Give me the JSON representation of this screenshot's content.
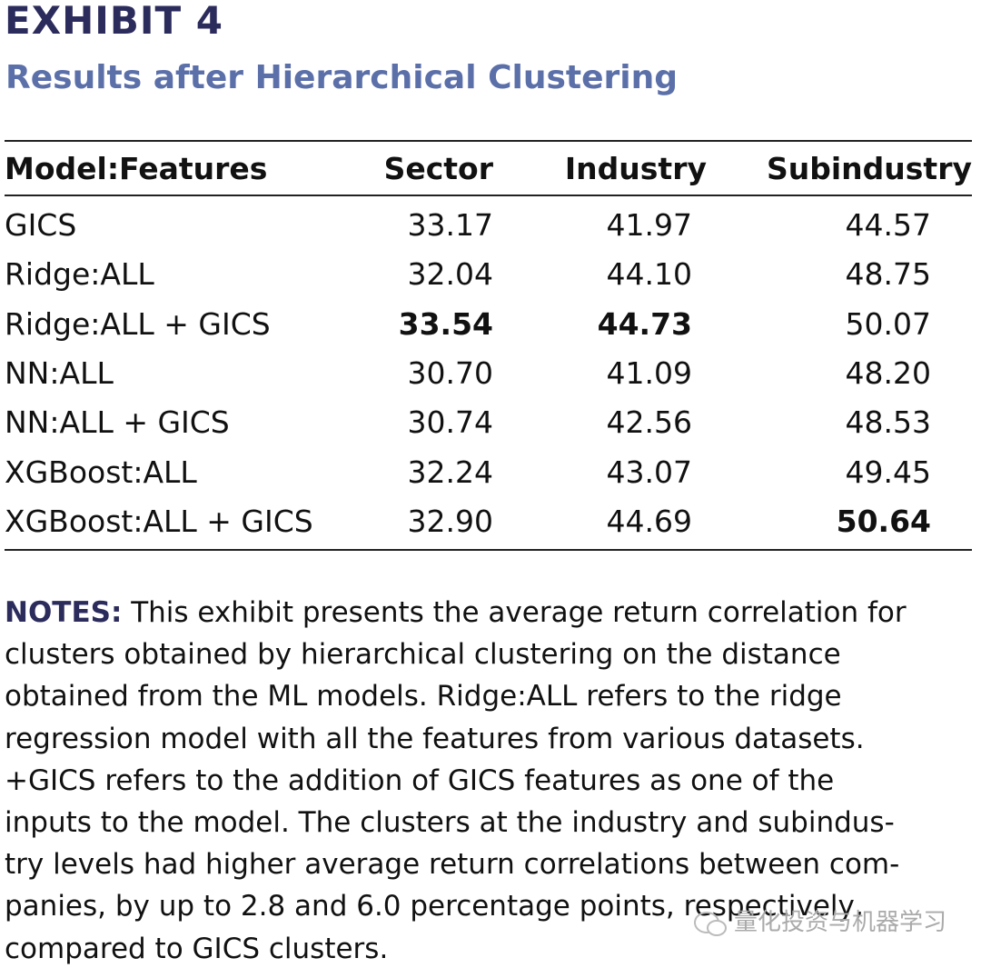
{
  "header": {
    "exhibit": "EXHIBIT 4",
    "title": "Results after Hierarchical Clustering"
  },
  "table": {
    "columns": [
      "Model:Features",
      "Sector",
      "Industry",
      "Subindustry"
    ],
    "rows": [
      [
        "GICS",
        "33.17",
        "41.97",
        "44.57"
      ],
      [
        "Ridge:ALL",
        "32.04",
        "44.10",
        "48.75"
      ],
      [
        "Ridge:ALL + GICS",
        "33.54",
        "44.73",
        "50.07"
      ],
      [
        "NN:ALL",
        "30.70",
        "41.09",
        "48.20"
      ],
      [
        "NN:ALL + GICS",
        "30.74",
        "42.56",
        "48.53"
      ],
      [
        "XGBoost:ALL",
        "32.24",
        "43.07",
        "49.45"
      ],
      [
        "XGBoost:ALL + GICS",
        "32.90",
        "44.69",
        "50.64"
      ]
    ],
    "bold": [
      [
        2,
        1
      ],
      [
        2,
        2
      ],
      [
        6,
        3
      ]
    ]
  },
  "notes": {
    "label": "NOTES:",
    "lines": [
      "This exhibit presents the average return correlation for",
      "clusters obtained by hierarchical clustering on the distance",
      "obtained from the ML models. Ridge:ALL refers to the ridge",
      "regression model with all the features from various datasets.",
      "+GICS refers to the addition of GICS features as one of the",
      "inputs to the model. The clusters at the industry and subindus-",
      "try levels had higher average return correlations between com-",
      "panies, by up to 2.8 and 6.0 percentage points, respectively,",
      "compared to GICS clusters."
    ]
  },
  "watermark": "量化投资与机器学习"
}
